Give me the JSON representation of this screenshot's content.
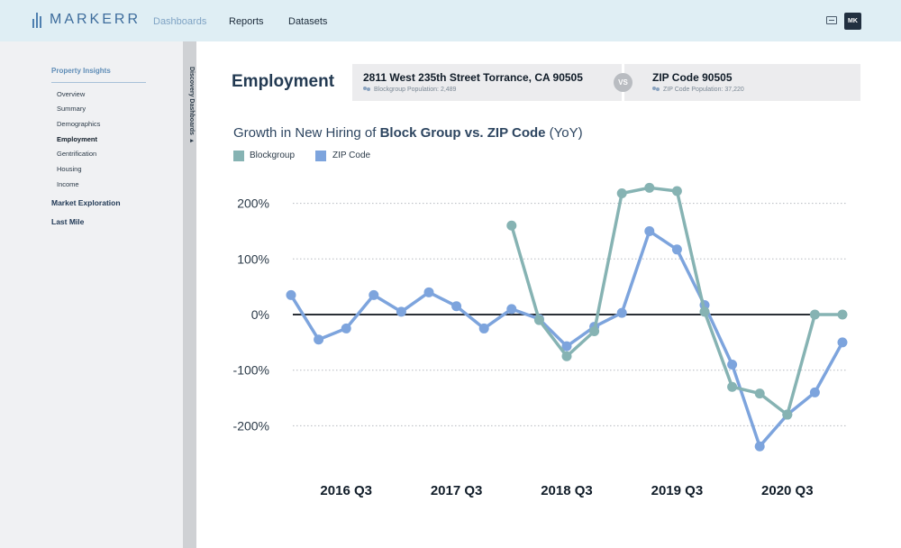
{
  "app": {
    "logo_text": "MARKERR"
  },
  "nav": {
    "items": [
      "Dashboards",
      "Reports",
      "Datasets"
    ],
    "active": "Dashboards"
  },
  "user": {
    "initials": "MK"
  },
  "sidebar": {
    "heading": "Property Insights",
    "items": [
      "Overview",
      "Summary",
      "Demographics",
      "Employment",
      "Gentrification",
      "Housing",
      "Income"
    ],
    "active_item": "Employment",
    "sections": [
      "Market Exploration",
      "Last Mile"
    ],
    "drawer_label": "Discovery Dashboards ▸"
  },
  "page": {
    "title": "Employment"
  },
  "comparison": {
    "left": {
      "title": "2811 West 235th Street Torrance, CA 90505",
      "subtitle": "Blockgroup Population: 2,489"
    },
    "vs_label": "VS",
    "right": {
      "title": "ZIP Code 90505",
      "subtitle": "ZIP Code Population: 37,220"
    }
  },
  "chart_title": {
    "prefix": "Growth in New Hiring of ",
    "bold": "Block Group vs. ZIP Code",
    "suffix": " (YoY)"
  },
  "chart_data": {
    "type": "line",
    "title": "Growth in New Hiring of Block Group vs. ZIP Code (YoY)",
    "x_tick_labels": [
      "2016 Q3",
      "2017 Q3",
      "2018 Q3",
      "2019 Q3",
      "2020 Q3"
    ],
    "y_tick_labels": [
      "200%",
      "100%",
      "0%",
      "-100%",
      "-200%"
    ],
    "y_ticks": [
      200,
      100,
      0,
      -100,
      -200
    ],
    "ylim": [
      -250,
      250
    ],
    "grid": "horizontal dotted",
    "legend_position": "top-left",
    "series": [
      {
        "name": "Blockgroup",
        "color": "#86b3b3",
        "points": [
          [
            8,
            160
          ],
          [
            9,
            -10
          ],
          [
            10,
            -75
          ],
          [
            11,
            -30
          ],
          [
            12,
            218
          ],
          [
            13,
            228
          ],
          [
            14,
            222
          ],
          [
            15,
            5
          ],
          [
            16,
            -130
          ],
          [
            17,
            -142
          ],
          [
            18,
            -180
          ],
          [
            19,
            0
          ],
          [
            20,
            0
          ]
        ]
      },
      {
        "name": "ZIP Code",
        "color": "#7da4dd",
        "points": [
          [
            0,
            35
          ],
          [
            1,
            -45
          ],
          [
            2,
            -25
          ],
          [
            3,
            35
          ],
          [
            4,
            5
          ],
          [
            5,
            40
          ],
          [
            6,
            15
          ],
          [
            7,
            -25
          ],
          [
            8,
            10
          ],
          [
            9,
            -8
          ],
          [
            10,
            -57
          ],
          [
            11,
            -22
          ],
          [
            12,
            3
          ],
          [
            13,
            150
          ],
          [
            14,
            117
          ],
          [
            15,
            17
          ],
          [
            16,
            -90
          ],
          [
            17,
            -237
          ],
          [
            18,
            -180
          ],
          [
            19,
            -140
          ],
          [
            20,
            -50
          ]
        ]
      }
    ]
  }
}
